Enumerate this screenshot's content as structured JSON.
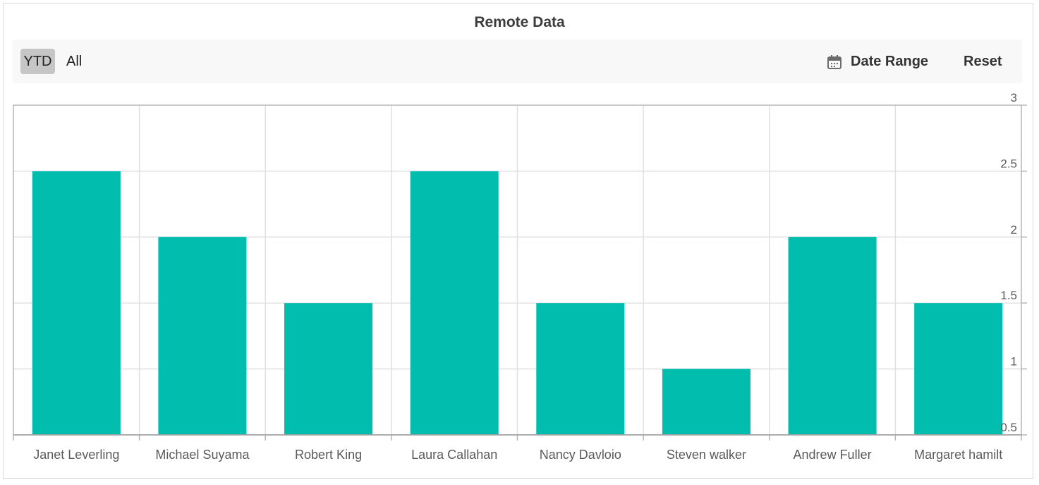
{
  "toolbar": {
    "ytd_label": "YTD",
    "all_label": "All",
    "date_range_label": "Date Range",
    "reset_label": "Reset"
  },
  "colors": {
    "bar": "#00bdae",
    "grid": "#e0e0e0",
    "axis": "#b5b5b5",
    "selected_button": "#c6c6c6"
  },
  "icons": {
    "date_range": "calendar-icon"
  },
  "chart_data": {
    "type": "bar",
    "title": "Remote Data",
    "categories": [
      "Janet Leverling",
      "Michael Suyama",
      "Robert King",
      "Laura Callahan",
      "Nancy Davloio",
      "Steven walker",
      "Andrew Fuller",
      "Margaret hamilt"
    ],
    "values": [
      2.5,
      2,
      1.5,
      2.5,
      1.5,
      1,
      2,
      1.5
    ],
    "ylim": [
      0.5,
      3
    ],
    "yticks": [
      0.5,
      1,
      1.5,
      2,
      2.5,
      3
    ],
    "ytick_labels": [
      "0.5",
      "1",
      "1.5",
      "2",
      "2.5",
      "3"
    ],
    "y_axis_side": "right",
    "xlabel": "",
    "ylabel": "",
    "grid": true
  }
}
